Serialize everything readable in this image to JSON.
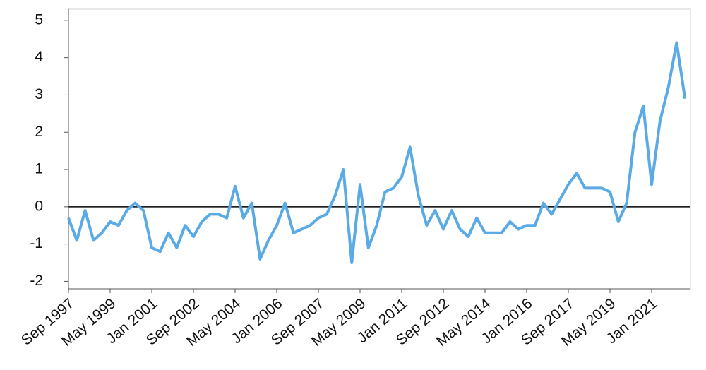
{
  "chart_data": {
    "type": "line",
    "categories": [
      "Sep 1997",
      null,
      null,
      null,
      null,
      "May 1999",
      null,
      null,
      null,
      null,
      "Jan 2001",
      null,
      null,
      null,
      null,
      "Sep 2002",
      null,
      null,
      null,
      null,
      "May 2004",
      null,
      null,
      null,
      null,
      "Jan 2006",
      null,
      null,
      null,
      null,
      "Sep 2007",
      null,
      null,
      null,
      null,
      "May 2009",
      null,
      null,
      null,
      null,
      "Jan 2011",
      null,
      null,
      null,
      null,
      "Sep 2012",
      null,
      null,
      null,
      null,
      "May 2014",
      null,
      null,
      null,
      null,
      "Jan 2016",
      null,
      null,
      null,
      null,
      "Sep 2017",
      null,
      null,
      null,
      null,
      "May 2019",
      null,
      null,
      null,
      null,
      "Jan 2021",
      null,
      null,
      null,
      null
    ],
    "series": [
      {
        "color": "#5aaae6",
        "values": [
          -0.3,
          -0.9,
          -0.1,
          -0.9,
          -0.7,
          -0.4,
          -0.5,
          -0.1,
          0.1,
          -0.1,
          -1.1,
          -1.2,
          -0.7,
          -1.1,
          -0.5,
          -0.8,
          -0.4,
          -0.2,
          -0.2,
          -0.3,
          0.55,
          -0.3,
          0.1,
          -1.4,
          -0.9,
          -0.5,
          0.1,
          -0.7,
          -0.6,
          -0.5,
          -0.3,
          -0.2,
          0.3,
          1.0,
          -1.5,
          0.6,
          -1.1,
          -0.5,
          0.4,
          0.5,
          0.8,
          1.6,
          0.3,
          -0.5,
          -0.1,
          -0.6,
          -0.1,
          -0.6,
          -0.8,
          -0.3,
          -0.7,
          -0.7,
          -0.7,
          -0.4,
          -0.6,
          -0.5,
          -0.5,
          0.1,
          -0.2,
          0.2,
          0.6,
          0.9,
          0.5,
          0.5,
          0.5,
          0.4,
          -0.4,
          0.1,
          2.0,
          2.7,
          0.6,
          2.3,
          3.2,
          4.4,
          2.9
        ]
      }
    ],
    "ylim": [
      -2.2,
      5.3
    ],
    "yticks": [
      -2,
      -1,
      0,
      1,
      2,
      3,
      4,
      5
    ],
    "grid": false
  }
}
